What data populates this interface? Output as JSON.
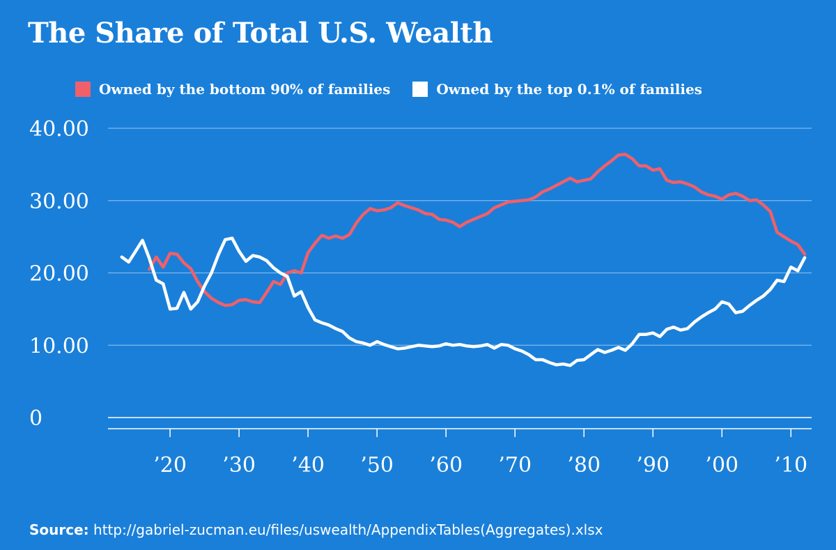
{
  "colors": {
    "background": "#1a7fd9",
    "series_bottom": "#f0606a",
    "series_top": "#ffffff",
    "grid": "#7fb8ec"
  },
  "source": {
    "label": "Source:",
    "url": "http://gabriel-zucman.eu/files/uswealth/AppendixTables(Aggregates).xlsx"
  },
  "chart_data": {
    "type": "line",
    "title": "The Share of Total U.S. Wealth",
    "xlabel": "",
    "ylabel": "",
    "ylim": [
      0,
      40
    ],
    "xlim": [
      1911,
      2013
    ],
    "yticks": [
      0,
      10,
      20,
      30,
      40
    ],
    "ytick_labels": [
      "0",
      "10.00",
      "20.00",
      "30.00",
      "40.00"
    ],
    "xticks": [
      1920,
      1930,
      1940,
      1950,
      1960,
      1970,
      1980,
      1990,
      2000,
      2010
    ],
    "xtick_labels": [
      "’20",
      "’30",
      "’40",
      "’50",
      "’60",
      "’70",
      "’80",
      "’90",
      "’00",
      "’10"
    ],
    "grid": true,
    "legend_position": "top",
    "series": [
      {
        "name": "Owned by the bottom 90% of families",
        "color": "#f0606a",
        "x": [
          1917,
          1918,
          1919,
          1920,
          1921,
          1922,
          1923,
          1924,
          1925,
          1926,
          1927,
          1928,
          1929,
          1930,
          1931,
          1932,
          1933,
          1934,
          1935,
          1936,
          1937,
          1938,
          1939,
          1940,
          1941,
          1942,
          1943,
          1944,
          1945,
          1946,
          1947,
          1948,
          1949,
          1950,
          1951,
          1952,
          1953,
          1954,
          1955,
          1956,
          1957,
          1958,
          1959,
          1960,
          1961,
          1962,
          1963,
          1964,
          1965,
          1966,
          1967,
          1968,
          1969,
          1970,
          1971,
          1972,
          1973,
          1974,
          1975,
          1976,
          1977,
          1978,
          1979,
          1980,
          1981,
          1982,
          1983,
          1984,
          1985,
          1986,
          1987,
          1988,
          1989,
          1990,
          1991,
          1992,
          1993,
          1994,
          1995,
          1996,
          1997,
          1998,
          1999,
          2000,
          2001,
          2002,
          2003,
          2004,
          2005,
          2006,
          2007,
          2008,
          2009,
          2010,
          2011,
          2012
        ],
        "values": [
          20.5,
          22.2,
          20.8,
          22.7,
          22.6,
          21.4,
          20.6,
          18.8,
          17.4,
          16.5,
          15.9,
          15.5,
          15.6,
          16.2,
          16.3,
          16.0,
          15.9,
          17.3,
          18.8,
          18.4,
          20.0,
          20.3,
          20.0,
          22.8,
          24.1,
          25.2,
          24.8,
          25.1,
          24.8,
          25.3,
          26.9,
          28.1,
          28.9,
          28.6,
          28.7,
          29.0,
          29.7,
          29.3,
          29.0,
          28.7,
          28.2,
          28.1,
          27.4,
          27.3,
          27.0,
          26.4,
          27.0,
          27.4,
          27.8,
          28.2,
          29.0,
          29.4,
          29.8,
          29.9,
          30.0,
          30.1,
          30.5,
          31.2,
          31.6,
          32.1,
          32.6,
          33.1,
          32.6,
          32.8,
          33.0,
          34.0,
          34.8,
          35.5,
          36.3,
          36.4,
          35.8,
          34.8,
          34.8,
          34.2,
          34.4,
          32.8,
          32.5,
          32.6,
          32.3,
          31.9,
          31.2,
          30.8,
          30.6,
          30.2,
          30.8,
          31.0,
          30.6,
          30.0,
          30.1,
          29.4,
          28.5,
          25.6,
          25.0,
          24.4,
          23.9,
          22.6
        ]
      },
      {
        "name": "Owned by the top 0.1% of families",
        "color": "#ffffff",
        "x": [
          1913,
          1914,
          1915,
          1916,
          1917,
          1918,
          1919,
          1920,
          1921,
          1922,
          1923,
          1924,
          1925,
          1926,
          1927,
          1928,
          1929,
          1930,
          1931,
          1932,
          1933,
          1934,
          1935,
          1936,
          1937,
          1938,
          1939,
          1940,
          1941,
          1942,
          1943,
          1944,
          1945,
          1946,
          1947,
          1948,
          1949,
          1950,
          1951,
          1952,
          1953,
          1954,
          1955,
          1956,
          1957,
          1958,
          1959,
          1960,
          1961,
          1962,
          1963,
          1964,
          1965,
          1966,
          1967,
          1968,
          1969,
          1970,
          1971,
          1972,
          1973,
          1974,
          1975,
          1976,
          1977,
          1978,
          1979,
          1980,
          1981,
          1982,
          1983,
          1984,
          1985,
          1986,
          1987,
          1988,
          1989,
          1990,
          1991,
          1992,
          1993,
          1994,
          1995,
          1996,
          1997,
          1998,
          1999,
          2000,
          2001,
          2002,
          2003,
          2004,
          2005,
          2006,
          2007,
          2008,
          2009,
          2010,
          2011,
          2012
        ],
        "values": [
          22.2,
          21.5,
          23.0,
          24.5,
          22.0,
          19.0,
          18.5,
          15.0,
          15.1,
          17.3,
          15.0,
          16.0,
          18.2,
          20.0,
          22.5,
          24.6,
          24.8,
          23.0,
          21.6,
          22.4,
          22.2,
          21.7,
          20.7,
          20.0,
          19.5,
          16.8,
          17.4,
          15.2,
          13.5,
          13.1,
          12.8,
          12.3,
          11.9,
          11.0,
          10.5,
          10.3,
          10.0,
          10.5,
          10.1,
          9.8,
          9.5,
          9.6,
          9.8,
          10.0,
          9.9,
          9.8,
          9.9,
          10.2,
          10.0,
          10.1,
          9.9,
          9.8,
          9.9,
          10.1,
          9.6,
          10.1,
          10.0,
          9.5,
          9.2,
          8.7,
          8.0,
          8.0,
          7.6,
          7.3,
          7.4,
          7.2,
          7.9,
          8.0,
          8.7,
          9.4,
          9.0,
          9.3,
          9.7,
          9.3,
          10.2,
          11.5,
          11.5,
          11.7,
          11.2,
          12.2,
          12.5,
          12.1,
          12.3,
          13.2,
          13.9,
          14.5,
          15.0,
          16.0,
          15.7,
          14.5,
          14.7,
          15.5,
          16.2,
          16.8,
          17.7,
          19.0,
          18.8,
          20.8,
          20.3,
          22.1
        ]
      }
    ]
  }
}
